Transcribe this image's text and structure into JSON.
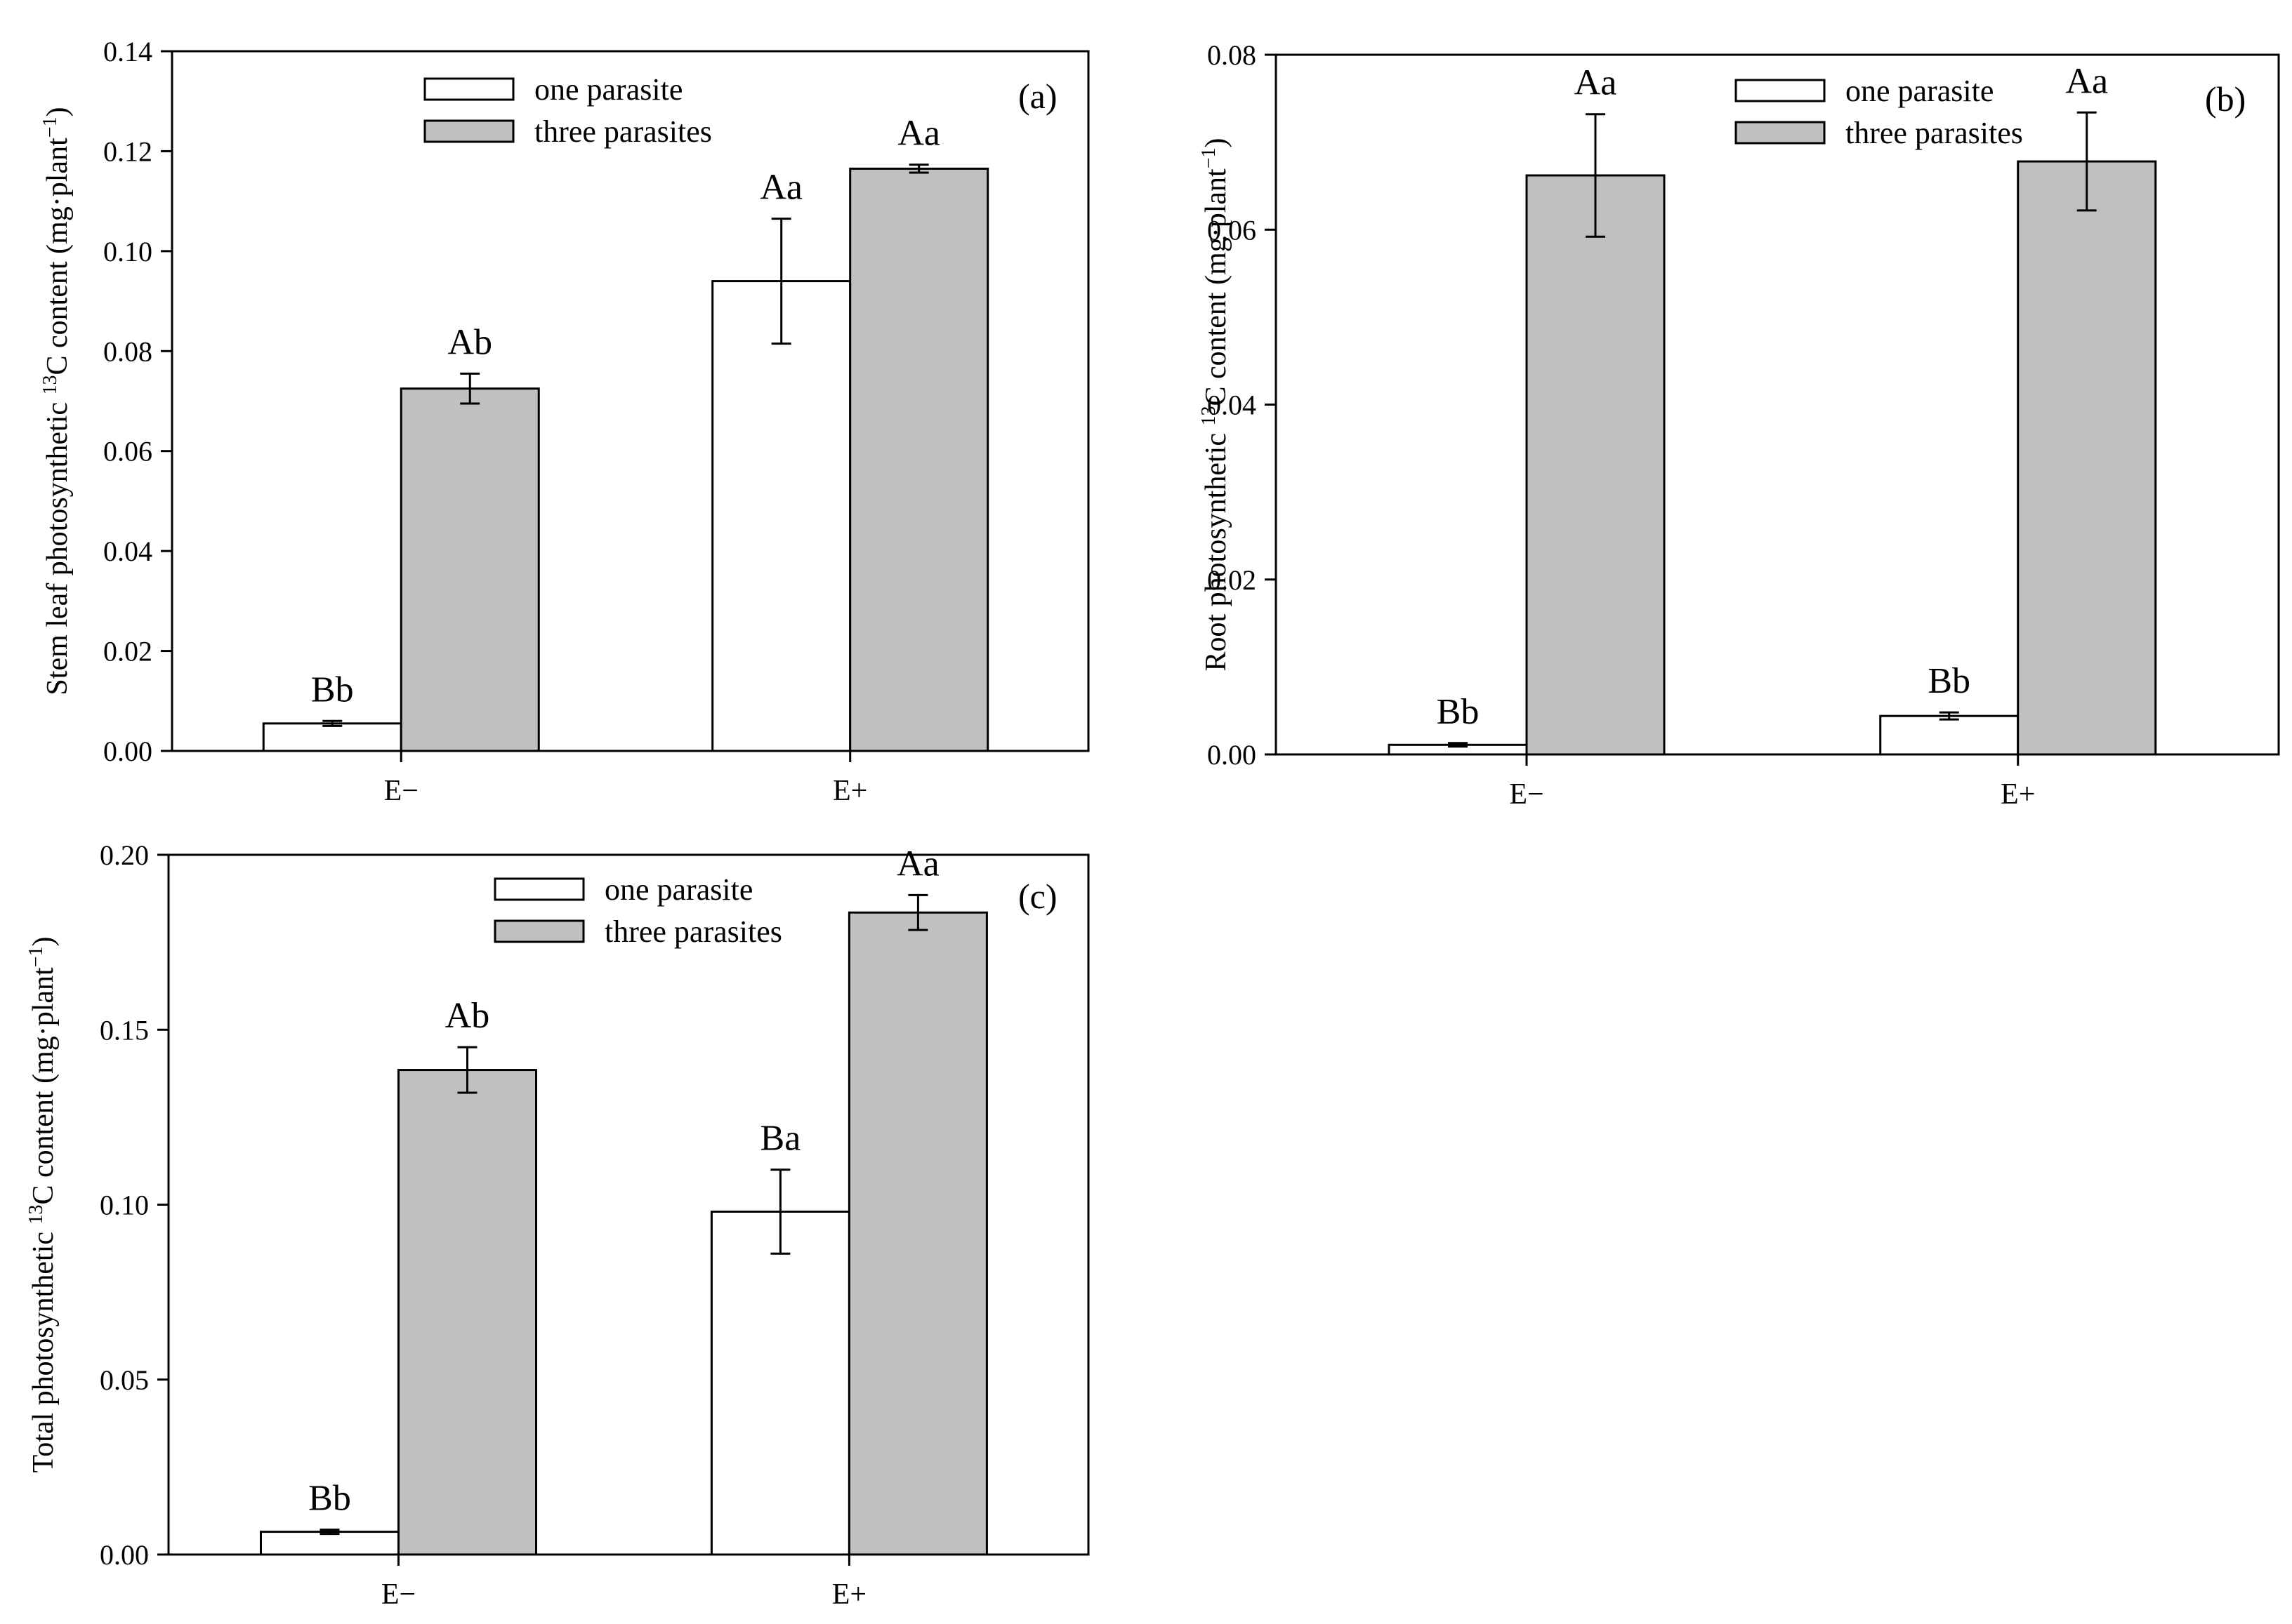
{
  "colors": {
    "one_parasite": "#ffffff",
    "three_parasites": "#c0c0c0",
    "axis": "#000000"
  },
  "chart_data": [
    {
      "id": "a",
      "type": "bar",
      "panel_label": "(a)",
      "categories": [
        "E−",
        "E+"
      ],
      "ylabel_prefix": "Stem leaf photosynthetic ",
      "ylabel_sup": "13",
      "ylabel_mid": "C content (mg·plant",
      "ylabel_sup2": "−1",
      "ylabel_suffix": ")",
      "ylim": [
        0,
        0.14
      ],
      "yticks": [
        "0.00",
        "0.02",
        "0.04",
        "0.06",
        "0.08",
        "0.10",
        "0.12",
        "0.14"
      ],
      "legend": [
        "one parasite",
        "three parasites"
      ],
      "series": [
        {
          "name": "one parasite",
          "values": [
            0.0055,
            0.094
          ],
          "errors": [
            0.0005,
            0.0125
          ],
          "labels": [
            "Bb",
            "Aa"
          ]
        },
        {
          "name": "three parasites",
          "values": [
            0.0725,
            0.1165
          ],
          "errors": [
            0.003,
            0.0008
          ],
          "labels": [
            "Ab",
            "Aa"
          ]
        }
      ]
    },
    {
      "id": "b",
      "type": "bar",
      "panel_label": "(b)",
      "categories": [
        "E−",
        "E+"
      ],
      "ylabel_prefix": "Root photosynthetic ",
      "ylabel_sup": "13",
      "ylabel_mid": "C content (mg·plant",
      "ylabel_sup2": "−1",
      "ylabel_suffix": ")",
      "ylim": [
        0,
        0.08
      ],
      "yticks": [
        "0.00",
        "0.02",
        "0.04",
        "0.06",
        "0.08"
      ],
      "legend": [
        "one parasite",
        "three parasites"
      ],
      "series": [
        {
          "name": "one parasite",
          "values": [
            0.0011,
            0.0044
          ],
          "errors": [
            0.0002,
            0.0004
          ],
          "labels": [
            "Bb",
            "Bb"
          ]
        },
        {
          "name": "three parasites",
          "values": [
            0.0662,
            0.0678
          ],
          "errors": [
            0.007,
            0.0056
          ],
          "labels": [
            "Aa",
            "Aa"
          ]
        }
      ]
    },
    {
      "id": "c",
      "type": "bar",
      "panel_label": "(c)",
      "categories": [
        "E−",
        "E+"
      ],
      "ylabel_prefix": "Total photosynthetic ",
      "ylabel_sup": "13",
      "ylabel_mid": "C content (mg·plant",
      "ylabel_sup2": "−1",
      "ylabel_suffix": ")",
      "ylim": [
        0,
        0.2
      ],
      "yticks": [
        "0.00",
        "0.05",
        "0.10",
        "0.15",
        "0.20"
      ],
      "legend": [
        "one parasite",
        "three parasites"
      ],
      "series": [
        {
          "name": "one parasite",
          "values": [
            0.0065,
            0.098
          ],
          "errors": [
            0.0006,
            0.012
          ],
          "labels": [
            "Bb",
            "Ba"
          ]
        },
        {
          "name": "three parasites",
          "values": [
            0.1385,
            0.1835
          ],
          "errors": [
            0.0065,
            0.005
          ],
          "labels": [
            "Ab",
            "Aa"
          ]
        }
      ]
    }
  ]
}
